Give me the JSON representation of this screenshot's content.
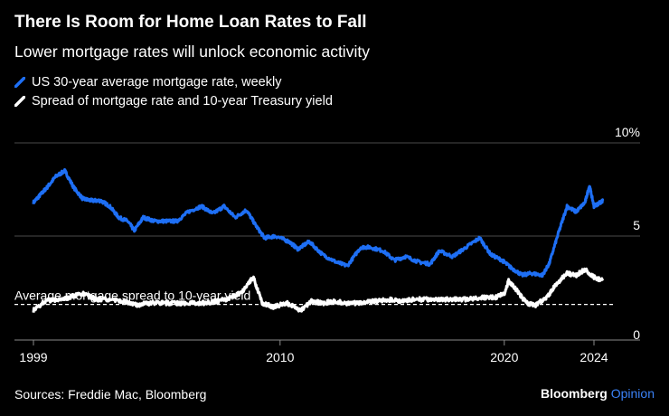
{
  "header": {
    "title": "There Is Room for Home Loan Rates to Fall",
    "subtitle": "Lower mortgage rates will unlock economic activity"
  },
  "footer": {
    "source": "Sources: Freddie Mac, Bloomberg",
    "brand_name": "Bloomberg",
    "brand_suffix": "Opinion"
  },
  "chart_data": {
    "type": "line",
    "title": "There Is Room for Home Loan Rates to Fall",
    "subtitle": "Lower mortgage rates will unlock economic activity",
    "x_ticks": [
      "1999",
      "2010",
      "2020",
      "2024"
    ],
    "y_ticks": [
      "0",
      "5",
      "10%"
    ],
    "xlim": [
      1999,
      2025.3
    ],
    "ylim": [
      0,
      10
    ],
    "grid": true,
    "legend_position": "top-left",
    "annotation": {
      "text": "Average mortgage spread to 10-year yield",
      "y": 1.33
    },
    "series": [
      {
        "name": "US 30-year average mortgage rate, weekly",
        "color": "#1e6ff5",
        "x": [
          1999.0,
          1999.3,
          1999.6,
          2000.0,
          2000.4,
          2000.8,
          2001.2,
          2001.6,
          2002.0,
          2002.4,
          2002.8,
          2003.2,
          2003.5,
          2003.9,
          2004.4,
          2004.9,
          2005.4,
          2005.9,
          2006.5,
          2007.0,
          2007.5,
          2008.0,
          2008.5,
          2008.9,
          2009.3,
          2009.8,
          2010.4,
          2010.8,
          2011.3,
          2011.9,
          2012.5,
          2013.0,
          2013.6,
          2014.0,
          2014.6,
          2015.1,
          2015.6,
          2016.2,
          2016.7,
          2017.1,
          2017.7,
          2018.3,
          2018.9,
          2019.4,
          2019.9,
          2020.3,
          2020.8,
          2021.2,
          2021.7,
          2022.0,
          2022.4,
          2022.8,
          2023.2,
          2023.6,
          2023.8,
          2024.0,
          2024.4
        ],
        "values": [
          6.8,
          7.2,
          7.6,
          8.2,
          8.5,
          7.6,
          7.0,
          6.9,
          6.9,
          6.6,
          6.0,
          5.8,
          5.3,
          6.0,
          5.8,
          5.8,
          5.8,
          6.3,
          6.6,
          6.2,
          6.6,
          6.0,
          6.4,
          5.6,
          4.9,
          5.0,
          4.7,
          4.3,
          4.7,
          4.0,
          3.6,
          3.4,
          4.4,
          4.4,
          4.2,
          3.7,
          3.9,
          3.6,
          3.5,
          4.2,
          3.9,
          4.4,
          4.9,
          4.0,
          3.7,
          3.3,
          2.9,
          3.0,
          2.9,
          3.5,
          5.1,
          6.6,
          6.3,
          6.8,
          7.7,
          6.6,
          6.9
        ]
      },
      {
        "name": "Spread of mortgage rate and 10-year Treasury yield",
        "color": "#ffffff",
        "x": [
          1999.0,
          1999.5,
          2000.0,
          2000.6,
          2001.2,
          2001.8,
          2002.4,
          2003.0,
          2003.6,
          2004.2,
          2004.8,
          2005.4,
          2006.0,
          2006.6,
          2007.2,
          2007.8,
          2008.3,
          2008.8,
          2009.2,
          2009.7,
          2010.3,
          2010.9,
          2011.4,
          2011.9,
          2012.4,
          2013.0,
          2013.6,
          2014.2,
          2014.8,
          2015.4,
          2016.0,
          2016.6,
          2017.2,
          2017.8,
          2018.4,
          2019.0,
          2019.6,
          2020.0,
          2020.2,
          2020.6,
          2021.0,
          2021.4,
          2021.9,
          2022.3,
          2022.8,
          2023.2,
          2023.6,
          2024.0,
          2024.4
        ],
        "values": [
          1.0,
          1.5,
          1.6,
          1.7,
          1.9,
          1.6,
          1.6,
          1.5,
          1.3,
          1.4,
          1.4,
          1.4,
          1.4,
          1.4,
          1.5,
          1.7,
          2.0,
          2.8,
          1.4,
          1.2,
          1.4,
          1.0,
          1.5,
          1.4,
          1.5,
          1.4,
          1.4,
          1.5,
          1.6,
          1.5,
          1.6,
          1.6,
          1.6,
          1.6,
          1.6,
          1.7,
          1.7,
          1.9,
          2.6,
          2.0,
          1.4,
          1.3,
          1.7,
          2.4,
          3.0,
          2.9,
          3.2,
          2.8,
          2.6
        ]
      }
    ]
  }
}
